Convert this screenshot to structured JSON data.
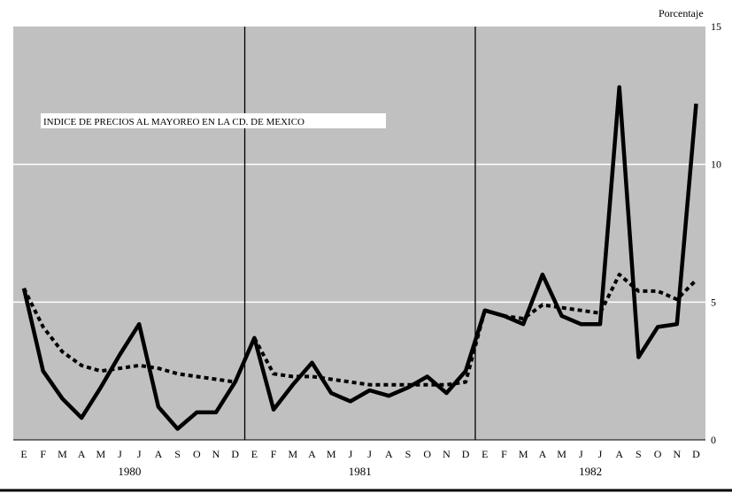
{
  "chart_data": {
    "type": "line",
    "title": "INDICE DE PRECIOS AL MAYOREO EN LA CD. DE MEXICO",
    "ylabel": "Porcentaje",
    "ylim": [
      0,
      15
    ],
    "yticks": [
      0,
      5,
      10,
      15
    ],
    "grid": true,
    "month_labels": [
      "E",
      "F",
      "M",
      "A",
      "M",
      "J",
      "J",
      "A",
      "S",
      "O",
      "N",
      "D",
      "E",
      "F",
      "M",
      "A",
      "M",
      "J",
      "J",
      "A",
      "S",
      "O",
      "N",
      "D",
      "E",
      "F",
      "M",
      "A",
      "M",
      "J",
      "J",
      "A",
      "S",
      "O",
      "N",
      "D"
    ],
    "years": [
      "1980",
      "1981",
      "1982"
    ],
    "series": [
      {
        "style": "solid",
        "values": [
          5.5,
          2.5,
          1.5,
          0.8,
          1.9,
          3.1,
          4.2,
          1.2,
          0.4,
          1.0,
          1.0,
          2.1,
          3.7,
          1.1,
          2.0,
          2.8,
          1.7,
          1.4,
          1.8,
          1.6,
          1.9,
          2.3,
          1.7,
          2.5,
          4.7,
          4.5,
          4.2,
          6.0,
          4.5,
          4.2,
          4.2,
          12.8,
          3.0,
          4.1,
          4.2,
          12.2
        ]
      },
      {
        "style": "dotted",
        "values": [
          5.5,
          4.1,
          3.2,
          2.7,
          2.5,
          2.6,
          2.7,
          2.6,
          2.4,
          2.3,
          2.2,
          2.1,
          3.7,
          2.4,
          2.3,
          2.3,
          2.2,
          2.1,
          2.0,
          2.0,
          2.0,
          2.0,
          2.0,
          2.1,
          4.7,
          4.5,
          4.4,
          4.9,
          4.8,
          4.7,
          4.6,
          6.0,
          5.4,
          5.4,
          5.1,
          5.8
        ]
      }
    ]
  }
}
